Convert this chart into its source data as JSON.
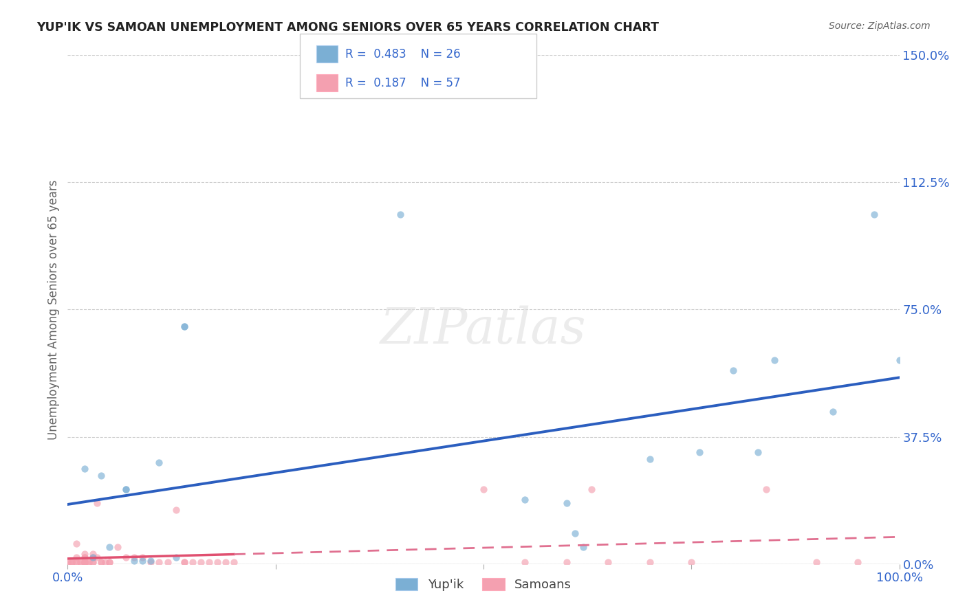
{
  "title": "YUP'IK VS SAMOAN UNEMPLOYMENT AMONG SENIORS OVER 65 YEARS CORRELATION CHART",
  "source": "Source: ZipAtlas.com",
  "ylabel_label": "Unemployment Among Seniors over 65 years",
  "xlim": [
    0,
    1.0
  ],
  "ylim": [
    0,
    1.5
  ],
  "yticks": [
    0.0,
    0.375,
    0.75,
    1.125,
    1.5
  ],
  "ytick_labels": [
    "0.0%",
    "37.5%",
    "75.0%",
    "112.5%",
    "150.0%"
  ],
  "xticks": [
    0.0,
    0.25,
    0.5,
    0.75,
    1.0
  ],
  "xtick_labels": [
    "0.0%",
    "",
    "",
    "",
    "100.0%"
  ],
  "yup_ik_points": [
    [
      0.02,
      0.28
    ],
    [
      0.03,
      0.02
    ],
    [
      0.04,
      0.26
    ],
    [
      0.05,
      0.05
    ],
    [
      0.07,
      0.22
    ],
    [
      0.07,
      0.22
    ],
    [
      0.08,
      0.01
    ],
    [
      0.09,
      0.01
    ],
    [
      0.1,
      0.01
    ],
    [
      0.11,
      0.3
    ],
    [
      0.13,
      0.02
    ],
    [
      0.14,
      0.7
    ],
    [
      0.14,
      0.7
    ],
    [
      0.4,
      1.03
    ],
    [
      0.55,
      0.19
    ],
    [
      0.6,
      0.18
    ],
    [
      0.61,
      0.09
    ],
    [
      0.62,
      0.05
    ],
    [
      0.7,
      0.31
    ],
    [
      0.76,
      0.33
    ],
    [
      0.8,
      0.57
    ],
    [
      0.83,
      0.33
    ],
    [
      0.85,
      0.6
    ],
    [
      0.92,
      0.45
    ],
    [
      0.97,
      1.03
    ],
    [
      1.0,
      0.6
    ]
  ],
  "samoan_points": [
    [
      0.0,
      0.005
    ],
    [
      0.0,
      0.005
    ],
    [
      0.005,
      0.005
    ],
    [
      0.005,
      0.005
    ],
    [
      0.005,
      0.005
    ],
    [
      0.01,
      0.005
    ],
    [
      0.01,
      0.005
    ],
    [
      0.01,
      0.06
    ],
    [
      0.01,
      0.02
    ],
    [
      0.015,
      0.005
    ],
    [
      0.015,
      0.005
    ],
    [
      0.02,
      0.02
    ],
    [
      0.02,
      0.005
    ],
    [
      0.02,
      0.005
    ],
    [
      0.02,
      0.005
    ],
    [
      0.02,
      0.02
    ],
    [
      0.02,
      0.03
    ],
    [
      0.02,
      0.005
    ],
    [
      0.025,
      0.005
    ],
    [
      0.025,
      0.005
    ],
    [
      0.03,
      0.005
    ],
    [
      0.03,
      0.02
    ],
    [
      0.03,
      0.03
    ],
    [
      0.03,
      0.005
    ],
    [
      0.035,
      0.18
    ],
    [
      0.035,
      0.02
    ],
    [
      0.04,
      0.005
    ],
    [
      0.04,
      0.005
    ],
    [
      0.045,
      0.005
    ],
    [
      0.05,
      0.005
    ],
    [
      0.05,
      0.005
    ],
    [
      0.06,
      0.05
    ],
    [
      0.07,
      0.02
    ],
    [
      0.08,
      0.02
    ],
    [
      0.09,
      0.02
    ],
    [
      0.1,
      0.005
    ],
    [
      0.11,
      0.005
    ],
    [
      0.12,
      0.005
    ],
    [
      0.13,
      0.16
    ],
    [
      0.14,
      0.005
    ],
    [
      0.14,
      0.005
    ],
    [
      0.15,
      0.005
    ],
    [
      0.16,
      0.005
    ],
    [
      0.17,
      0.005
    ],
    [
      0.18,
      0.005
    ],
    [
      0.19,
      0.005
    ],
    [
      0.2,
      0.005
    ],
    [
      0.5,
      0.22
    ],
    [
      0.55,
      0.005
    ],
    [
      0.6,
      0.005
    ],
    [
      0.63,
      0.22
    ],
    [
      0.65,
      0.005
    ],
    [
      0.7,
      0.005
    ],
    [
      0.75,
      0.005
    ],
    [
      0.84,
      0.22
    ],
    [
      0.9,
      0.005
    ],
    [
      0.95,
      0.005
    ]
  ],
  "yup_ik_color": "#7BAFD4",
  "samoan_color": "#F4A0B0",
  "yup_ik_line_color": "#2B5EBF",
  "samoan_line_solid_color": "#E05070",
  "samoan_line_dash_color": "#E07090",
  "R_yupik": 0.483,
  "N_yupik": 26,
  "R_samoan": 0.187,
  "N_samoan": 57,
  "legend_label_color": "#3366CC",
  "background_color": "#ffffff",
  "watermark": "ZIPatlas",
  "marker_size": 55,
  "marker_alpha": 0.65
}
